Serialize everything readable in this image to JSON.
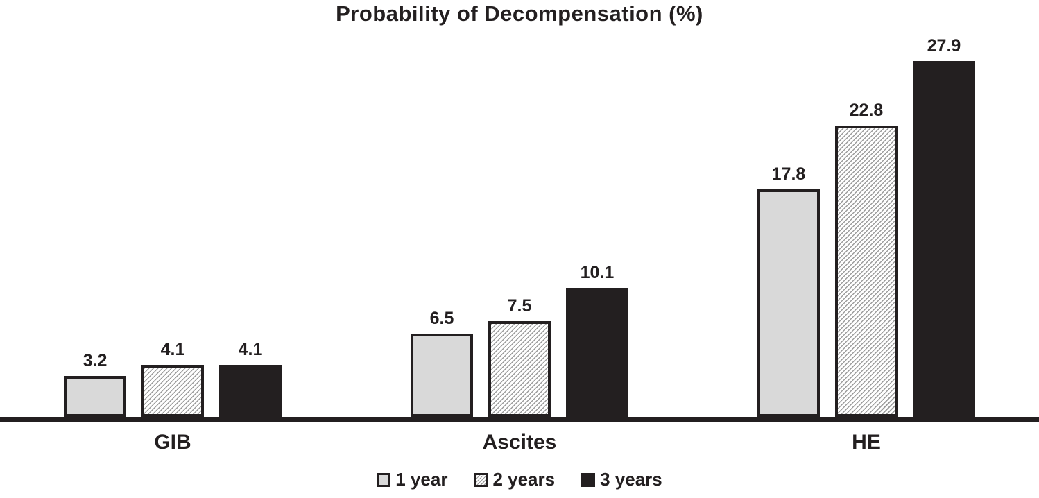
{
  "chart_data": {
    "type": "bar",
    "title": "Probability of Decompensation (%)",
    "categories": [
      "GIB",
      "Ascites",
      "HE"
    ],
    "series": [
      {
        "name": "1 year",
        "style": "light",
        "values": [
          3.2,
          6.5,
          17.8
        ]
      },
      {
        "name": "2 years",
        "style": "hatched",
        "values": [
          4.1,
          7.5,
          22.8
        ]
      },
      {
        "name": "3 years",
        "style": "solid",
        "values": [
          4.1,
          10.1,
          27.9
        ]
      }
    ],
    "ylim": [
      0,
      30
    ],
    "xlabel": "",
    "ylabel": "",
    "grid": false,
    "y_axis_visible": false,
    "value_labels": true,
    "legend_position": "bottom-center",
    "colors": {
      "light_fill": "#d9d9d9",
      "hatch_line": "#9c9c9c",
      "hatch_background": "#ffffff",
      "dark": "#231f20",
      "background": "#ffffff"
    }
  }
}
